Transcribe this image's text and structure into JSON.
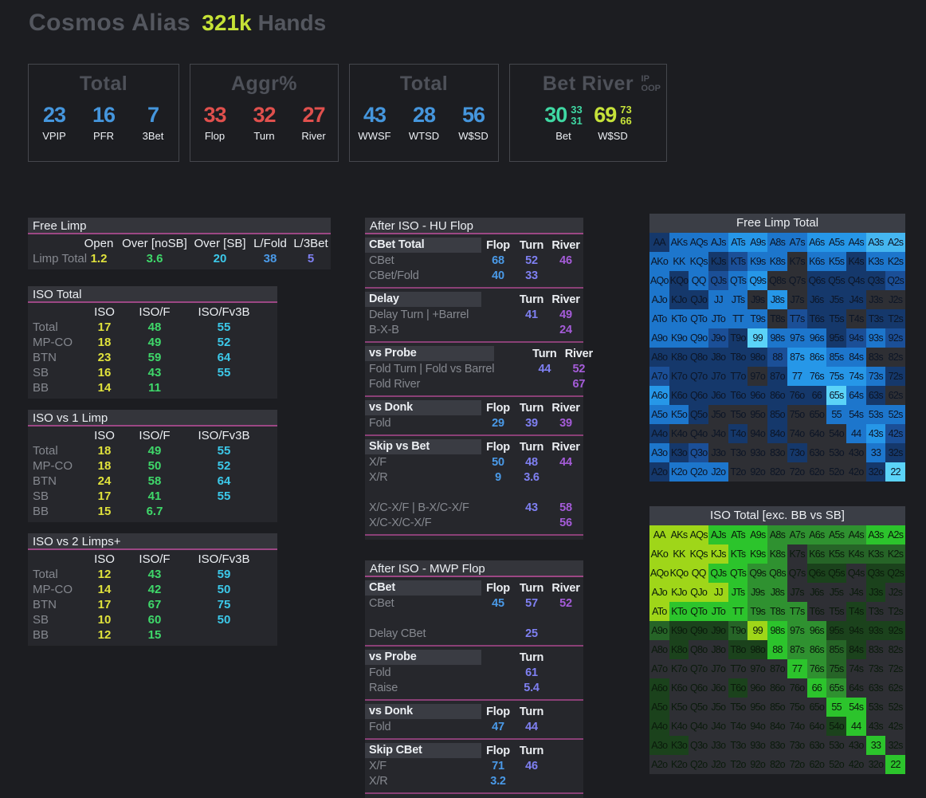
{
  "header": {
    "title": "Cosmos Alias",
    "hands_value": "321k",
    "hands_label": "Hands"
  },
  "value_colors": {
    "stat_blue": "#4596dd",
    "red": "#e0504d",
    "teal": "#3fd8a3",
    "lime": "#c6e23a",
    "yellow": "#e0e23c",
    "green": "#3fd86a",
    "cyan": "#3cc9ea",
    "blue": "#4a9ae8",
    "indigo": "#7f80f2",
    "purple": "#a55cd9"
  },
  "panels": [
    {
      "title": "Total",
      "stats": [
        {
          "value": "23",
          "label": "VPIP",
          "color": "stat_blue"
        },
        {
          "value": "16",
          "label": "PFR",
          "color": "stat_blue"
        },
        {
          "value": "7",
          "label": "3Bet",
          "color": "stat_blue"
        }
      ]
    },
    {
      "title": "Aggr%",
      "stats": [
        {
          "value": "33",
          "label": "Flop",
          "color": "red"
        },
        {
          "value": "32",
          "label": "Turn",
          "color": "red"
        },
        {
          "value": "27",
          "label": "River",
          "color": "red"
        }
      ]
    },
    {
      "title": "Total",
      "stats": [
        {
          "value": "43",
          "label": "WWSF",
          "color": "stat_blue"
        },
        {
          "value": "28",
          "label": "WTSD",
          "color": "stat_blue"
        },
        {
          "value": "56",
          "label": "W$SD",
          "color": "stat_blue"
        }
      ]
    },
    {
      "title": "Bet River",
      "corner": [
        "IP",
        "OOP"
      ],
      "stats": [
        {
          "value": "30",
          "sub": [
            "33",
            "31"
          ],
          "label": "Bet",
          "color": "teal"
        },
        {
          "value": "69",
          "sub": [
            "73",
            "66"
          ],
          "label": "W$SD",
          "color": "lime"
        }
      ]
    }
  ],
  "left_tables": [
    {
      "title": "Free Limp",
      "columns": [
        "Open",
        "Over [noSB]",
        "Over [SB]",
        "L/Fold",
        "L/3Bet"
      ],
      "col_colors": [
        "yellow",
        "green",
        "cyan",
        "blue",
        "indigo"
      ],
      "rows": [
        {
          "label": "Limp Total",
          "values": [
            "1.2",
            "3.6",
            "20",
            "38",
            "5"
          ]
        }
      ]
    },
    {
      "title": "ISO Total",
      "columns": [
        "ISO",
        "ISO/F",
        "ISO/Fv3B"
      ],
      "col_colors": [
        "yellow",
        "green",
        "cyan"
      ],
      "rows": [
        {
          "label": "Total",
          "values": [
            "17",
            "48",
            "55"
          ]
        },
        {
          "label": "MP-CO",
          "values": [
            "18",
            "49",
            "52"
          ]
        },
        {
          "label": "BTN",
          "values": [
            "23",
            "59",
            "64"
          ]
        },
        {
          "label": "SB",
          "values": [
            "16",
            "43",
            "55"
          ]
        },
        {
          "label": "BB",
          "values": [
            "14",
            "11",
            ""
          ]
        }
      ]
    },
    {
      "title": "ISO vs 1 Limp",
      "columns": [
        "ISO",
        "ISO/F",
        "ISO/Fv3B"
      ],
      "col_colors": [
        "yellow",
        "green",
        "cyan"
      ],
      "rows": [
        {
          "label": "Total",
          "values": [
            "18",
            "49",
            "55"
          ]
        },
        {
          "label": "MP-CO",
          "values": [
            "18",
            "50",
            "52"
          ]
        },
        {
          "label": "BTN",
          "values": [
            "24",
            "58",
            "64"
          ]
        },
        {
          "label": "SB",
          "values": [
            "17",
            "41",
            "55"
          ]
        },
        {
          "label": "BB",
          "values": [
            "15",
            "6.7",
            ""
          ]
        }
      ]
    },
    {
      "title": "ISO vs 2 Limps+",
      "columns": [
        "ISO",
        "ISO/F",
        "ISO/Fv3B"
      ],
      "col_colors": [
        "yellow",
        "green",
        "cyan"
      ],
      "rows": [
        {
          "label": "Total",
          "values": [
            "12",
            "43",
            "59"
          ]
        },
        {
          "label": "MP-CO",
          "values": [
            "14",
            "42",
            "50"
          ]
        },
        {
          "label": "BTN",
          "values": [
            "17",
            "67",
            "75"
          ]
        },
        {
          "label": "SB",
          "values": [
            "10",
            "60",
            "50"
          ]
        },
        {
          "label": "BB",
          "values": [
            "12",
            "15",
            ""
          ]
        }
      ]
    }
  ],
  "mid_panels": [
    {
      "title": "After ISO - HU Flop",
      "sections": [
        {
          "chip": "CBet Total",
          "headers": [
            "Flop",
            "Turn",
            "River"
          ],
          "rows": [
            {
              "label": "CBet",
              "f": "68",
              "t": "52",
              "r": "46"
            },
            {
              "label": "CBet/Fold",
              "f": "40",
              "t": "33",
              "r": ""
            }
          ]
        },
        {
          "chip": "Delay",
          "headers": [
            "",
            "Turn",
            "River"
          ],
          "rows": [
            {
              "label": "Delay Turn | +Barrel",
              "f": "",
              "t": "41",
              "r": "49"
            },
            {
              "label": "B-X-B",
              "f": "",
              "t": "",
              "r": "24"
            }
          ]
        },
        {
          "chip": "vs Probe",
          "headers": [
            "",
            "Turn",
            "River"
          ],
          "rows": [
            {
              "label": "Fold Turn | Fold vs Barrel",
              "f": "",
              "t": "44",
              "r": "52"
            },
            {
              "label": "Fold River",
              "f": "",
              "t": "",
              "r": "67"
            }
          ]
        },
        {
          "chip": "vs Donk",
          "headers": [
            "Flop",
            "Turn",
            "River"
          ],
          "rows": [
            {
              "label": "Fold",
              "f": "29",
              "t": "39",
              "r": "39"
            }
          ]
        },
        {
          "chip": "Skip vs Bet",
          "headers": [
            "Flop",
            "Turn",
            "River"
          ],
          "rows": [
            {
              "label": "X/F",
              "f": "50",
              "t": "48",
              "r": "44"
            },
            {
              "label": "X/R",
              "f": "9",
              "t": "3.6",
              "r": ""
            },
            {
              "label": "",
              "f": "",
              "t": "",
              "r": ""
            },
            {
              "label": "X/C-X/F | B-X/C-X/F",
              "f": "",
              "t": "43",
              "r": "58"
            },
            {
              "label": "X/C-X/C-X/F",
              "f": "",
              "t": "",
              "r": "56"
            }
          ]
        }
      ]
    },
    {
      "title": "After ISO - MWP Flop",
      "sections": [
        {
          "chip": "CBet",
          "headers": [
            "Flop",
            "Turn",
            "River"
          ],
          "rows": [
            {
              "label": "CBet",
              "f": "45",
              "t": "57",
              "r": "52"
            },
            {
              "label": "",
              "f": "",
              "t": "",
              "r": ""
            },
            {
              "label": "Delay CBet",
              "f": "",
              "t": "25",
              "r": ""
            }
          ]
        },
        {
          "chip": "vs Probe",
          "headers": [
            "",
            "Turn",
            ""
          ],
          "rows": [
            {
              "label": "Fold",
              "f": "",
              "t": "61",
              "r": ""
            },
            {
              "label": "Raise",
              "f": "",
              "t": "5.4",
              "r": ""
            }
          ]
        },
        {
          "chip": "vs Donk",
          "headers": [
            "Flop",
            "Turn",
            ""
          ],
          "rows": [
            {
              "label": "Fold",
              "f": "47",
              "t": "44",
              "r": ""
            }
          ]
        },
        {
          "chip": "Skip CBet",
          "headers": [
            "Flop",
            "Turn",
            ""
          ],
          "rows": [
            {
              "label": "X/F",
              "f": "71",
              "t": "46",
              "r": ""
            },
            {
              "label": "X/R",
              "f": "3.2",
              "t": "",
              "r": ""
            }
          ]
        }
      ]
    }
  ],
  "hand_labels": [
    [
      "AA",
      "AKs",
      "AQs",
      "AJs",
      "ATs",
      "A9s",
      "A8s",
      "A7s",
      "A6s",
      "A5s",
      "A4s",
      "A3s",
      "A2s"
    ],
    [
      "AKo",
      "KK",
      "KQs",
      "KJs",
      "KTs",
      "K9s",
      "K8s",
      "K7s",
      "K6s",
      "K5s",
      "K4s",
      "K3s",
      "K2s"
    ],
    [
      "AQo",
      "KQo",
      "QQ",
      "QJs",
      "QTs",
      "Q9s",
      "Q8s",
      "Q7s",
      "Q6s",
      "Q5s",
      "Q4s",
      "Q3s",
      "Q2s"
    ],
    [
      "AJo",
      "KJo",
      "QJo",
      "JJ",
      "JTs",
      "J9s",
      "J8s",
      "J7s",
      "J6s",
      "J5s",
      "J4s",
      "J3s",
      "J2s"
    ],
    [
      "ATo",
      "KTo",
      "QTo",
      "JTo",
      "TT",
      "T9s",
      "T8s",
      "T7s",
      "T6s",
      "T5s",
      "T4s",
      "T3s",
      "T2s"
    ],
    [
      "A9o",
      "K9o",
      "Q9o",
      "J9o",
      "T9o",
      "99",
      "98s",
      "97s",
      "96s",
      "95s",
      "94s",
      "93s",
      "92s"
    ],
    [
      "A8o",
      "K8o",
      "Q8o",
      "J8o",
      "T8o",
      "98o",
      "88",
      "87s",
      "86s",
      "85s",
      "84s",
      "83s",
      "82s"
    ],
    [
      "A7o",
      "K7o",
      "Q7o",
      "J7o",
      "T7o",
      "97o",
      "87o",
      "77",
      "76s",
      "75s",
      "74s",
      "73s",
      "72s"
    ],
    [
      "A6o",
      "K6o",
      "Q6o",
      "J6o",
      "T6o",
      "96o",
      "86o",
      "76o",
      "66",
      "65s",
      "64s",
      "63s",
      "62s"
    ],
    [
      "A5o",
      "K5o",
      "Q5o",
      "J5o",
      "T5o",
      "95o",
      "85o",
      "75o",
      "65o",
      "55",
      "54s",
      "53s",
      "52s"
    ],
    [
      "A4o",
      "K4o",
      "Q4o",
      "J4o",
      "T4o",
      "94o",
      "84o",
      "74o",
      "64o",
      "54o",
      "44",
      "43s",
      "42s"
    ],
    [
      "A3o",
      "K3o",
      "Q3o",
      "J3o",
      "T3o",
      "93o",
      "83o",
      "73o",
      "63o",
      "53o",
      "43o",
      "33",
      "32s"
    ],
    [
      "A2o",
      "K2o",
      "Q2o",
      "J2o",
      "T2o",
      "92o",
      "82o",
      "72o",
      "62o",
      "52o",
      "42o",
      "32o",
      "22"
    ]
  ],
  "matrices": [
    {
      "title": "Free Limp Total",
      "palette": [
        "#2e2f34",
        "#15386b",
        "#1b4f97",
        "#1d76cc",
        "#2697e8",
        "#45b6f0",
        "#5bd3f8"
      ],
      "text_color": "#0c1526",
      "levels": [
        [
          1,
          3,
          3,
          3,
          4,
          4,
          3,
          3,
          4,
          4,
          4,
          5,
          5
        ],
        [
          3,
          3,
          3,
          1,
          2,
          3,
          3,
          0,
          3,
          3,
          1,
          3,
          3
        ],
        [
          3,
          1,
          3,
          2,
          3,
          4,
          0,
          0,
          1,
          1,
          1,
          1,
          2
        ],
        [
          3,
          1,
          1,
          3,
          3,
          0,
          4,
          0,
          1,
          1,
          1,
          0,
          0
        ],
        [
          3,
          3,
          3,
          3,
          3,
          3,
          0,
          2,
          1,
          1,
          0,
          1,
          1
        ],
        [
          3,
          3,
          3,
          2,
          1,
          6,
          3,
          3,
          3,
          1,
          2,
          3,
          2
        ],
        [
          1,
          1,
          1,
          1,
          1,
          1,
          2,
          4,
          4,
          3,
          3,
          0,
          0
        ],
        [
          2,
          1,
          1,
          1,
          1,
          0,
          1,
          4,
          4,
          4,
          4,
          3,
          1
        ],
        [
          4,
          1,
          1,
          1,
          1,
          1,
          1,
          1,
          1,
          6,
          3,
          1,
          0
        ],
        [
          3,
          3,
          1,
          0,
          0,
          0,
          1,
          0,
          0,
          3,
          3,
          3,
          3
        ],
        [
          1,
          0,
          0,
          0,
          1,
          0,
          1,
          0,
          0,
          0,
          3,
          4,
          2
        ],
        [
          3,
          1,
          2,
          0,
          0,
          0,
          0,
          1,
          0,
          0,
          0,
          3,
          1
        ],
        [
          1,
          3,
          3,
          3,
          0,
          0,
          0,
          0,
          0,
          0,
          0,
          1,
          6
        ]
      ]
    },
    {
      "title": "ISO Total [exc. BB vs SB]",
      "palette": [
        "#2e2f34",
        "#1b421c",
        "#266427",
        "#2f9130",
        "#2cc42c",
        "#9fd619"
      ],
      "text_color": "#0a1a0b",
      "levels": [
        [
          5,
          5,
          5,
          4,
          4,
          4,
          3,
          3,
          3,
          3,
          3,
          4,
          4
        ],
        [
          5,
          5,
          5,
          5,
          4,
          4,
          3,
          0,
          2,
          2,
          2,
          2,
          2
        ],
        [
          5,
          5,
          5,
          4,
          4,
          3,
          3,
          0,
          1,
          1,
          0,
          1,
          1
        ],
        [
          5,
          5,
          5,
          5,
          4,
          3,
          3,
          0,
          0,
          0,
          0,
          1,
          0
        ],
        [
          5,
          4,
          4,
          4,
          4,
          3,
          3,
          3,
          0,
          0,
          1,
          0,
          0
        ],
        [
          2,
          1,
          1,
          1,
          2,
          5,
          4,
          3,
          3,
          1,
          1,
          1,
          1
        ],
        [
          0,
          1,
          0,
          0,
          1,
          1,
          4,
          3,
          3,
          2,
          1,
          0,
          0
        ],
        [
          0,
          0,
          0,
          0,
          0,
          0,
          0,
          4,
          3,
          2,
          0,
          0,
          0
        ],
        [
          1,
          0,
          0,
          0,
          1,
          0,
          0,
          0,
          4,
          3,
          0,
          0,
          0
        ],
        [
          1,
          0,
          0,
          0,
          0,
          0,
          0,
          0,
          0,
          4,
          4,
          0,
          0
        ],
        [
          1,
          0,
          0,
          0,
          0,
          0,
          0,
          0,
          0,
          1,
          4,
          0,
          0
        ],
        [
          1,
          1,
          0,
          0,
          0,
          0,
          0,
          0,
          0,
          0,
          0,
          4,
          0
        ],
        [
          0,
          0,
          0,
          0,
          0,
          0,
          0,
          0,
          0,
          0,
          0,
          0,
          4
        ]
      ]
    }
  ]
}
